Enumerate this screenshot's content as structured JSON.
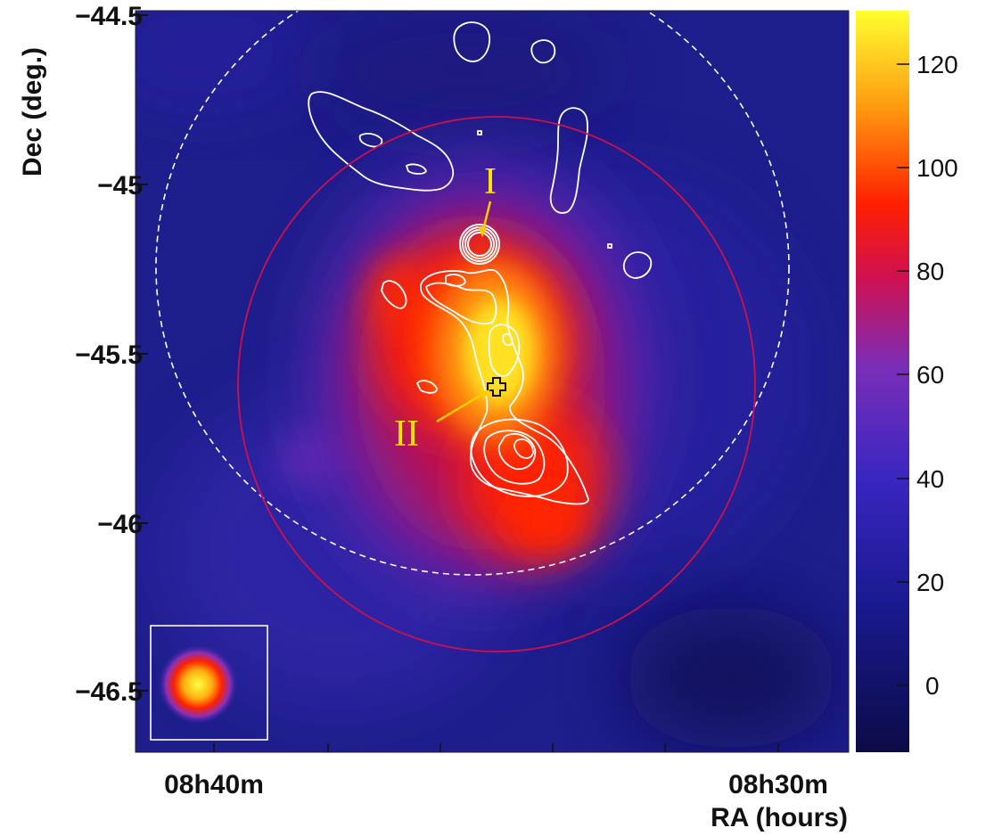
{
  "x_axis": {
    "title": "RA (hours)",
    "tick_labels": [
      "08h40m",
      "08h30m"
    ]
  },
  "y_axis": {
    "title": "Dec (deg.)",
    "tick_labels": [
      "-44.5",
      "-45",
      "-45.5",
      "-46",
      "-46.5"
    ]
  },
  "colorbar": {
    "tick_labels": [
      "120",
      "100",
      "80",
      "60",
      "40",
      "20",
      "0"
    ],
    "colors": [
      "#ffff30",
      "#ffa010",
      "#ff2000",
      "#c01050",
      "#6e30c8",
      "#2a20b0",
      "#0c0c50"
    ]
  },
  "annotations": [
    "I",
    "II"
  ],
  "colors": {
    "map_background": "#1e1e8c",
    "emission_core": "#ffe020",
    "contours": "#ffffff",
    "solid_circle": "#d0104a",
    "dashed_circle": "#ffffff",
    "annotation": "#ffe600"
  }
}
